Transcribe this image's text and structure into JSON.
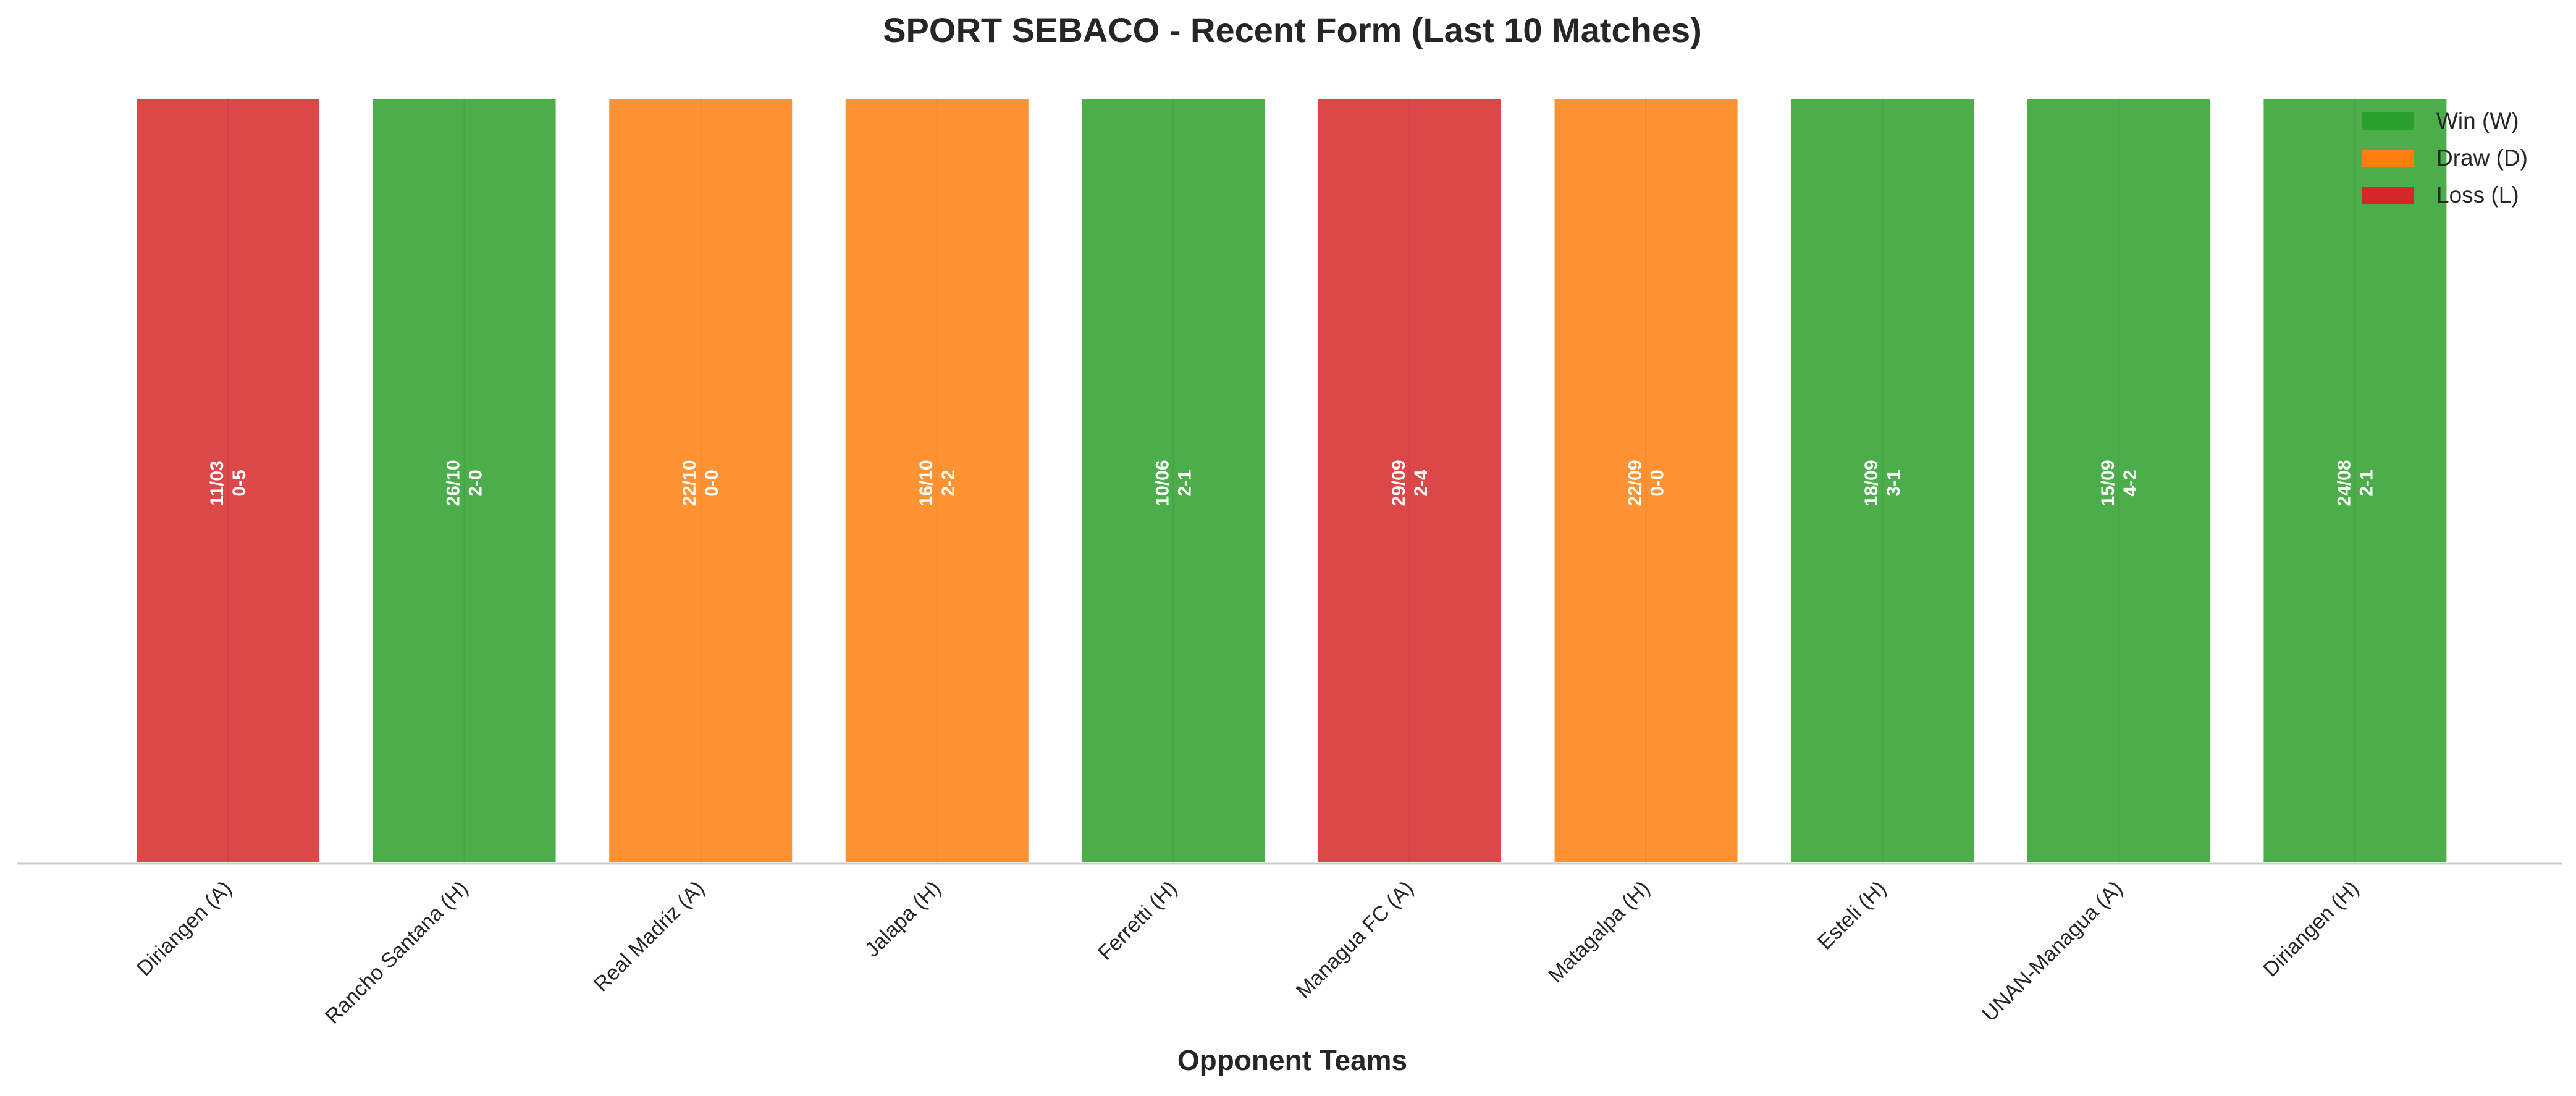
{
  "chart_data": {
    "type": "bar",
    "title": "SPORT SEBACO - Recent Form (Last 10 Matches)",
    "xlabel": "Opponent Teams",
    "ylabel": "",
    "categories": [
      "Diriangen (A)",
      "Rancho Santana (H)",
      "Real Madriz (A)",
      "Jalapa (H)",
      "Ferretti (H)",
      "Managua FC (A)",
      "Matagalpa (H)",
      "Esteli (H)",
      "UNAN-Managua (A)",
      "Diriangen (H)"
    ],
    "values": [
      1,
      1,
      1,
      1,
      1,
      1,
      1,
      1,
      1,
      1
    ],
    "results": [
      "L",
      "W",
      "D",
      "D",
      "W",
      "L",
      "D",
      "W",
      "W",
      "W"
    ],
    "dates": [
      "11/03",
      "26/10",
      "22/10",
      "16/10",
      "10/06",
      "29/09",
      "22/09",
      "18/09",
      "15/09",
      "24/08"
    ],
    "scores": [
      "0-5",
      "2-0",
      "0-0",
      "2-2",
      "2-1",
      "2-4",
      "0-0",
      "3-1",
      "4-2",
      "2-1"
    ],
    "legend": {
      "placement": "top-right",
      "entries": [
        {
          "key": "W",
          "label": "Win (W)"
        },
        {
          "key": "D",
          "label": "Draw (D)"
        },
        {
          "key": "L",
          "label": "Loss (L)"
        }
      ]
    },
    "colors": {
      "W": "#2ca02c",
      "D": "#ff7f0e",
      "L": "#d62728"
    },
    "grid": false
  }
}
